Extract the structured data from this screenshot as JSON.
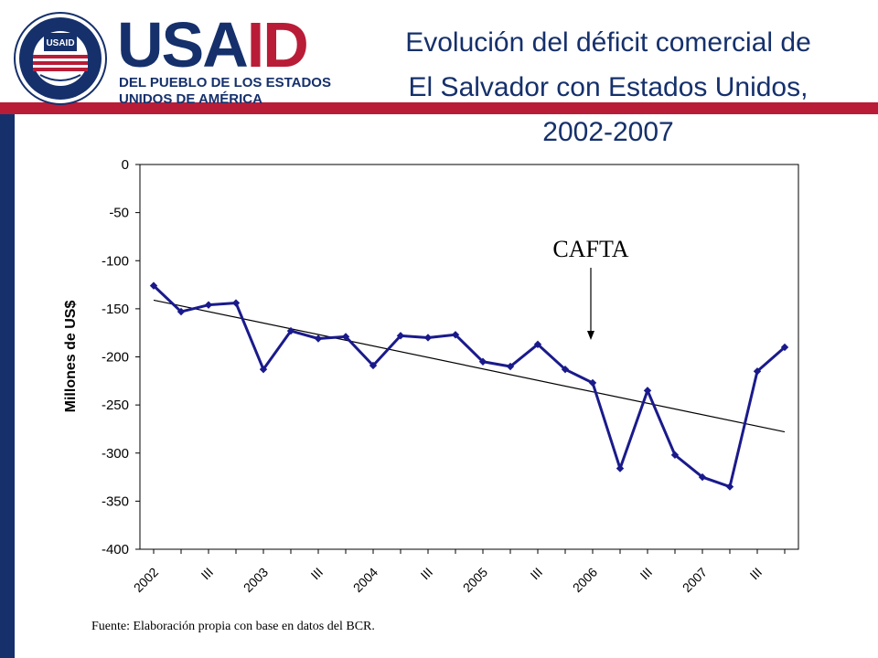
{
  "header": {
    "logo_word": "USAID",
    "logo_sub1": "DEL PUEBLO DE LOS ESTADOS",
    "logo_sub2": "UNIDOS DE AMÉRICA",
    "seal_text": "UNITED STATES AGENCY · INTERNATIONAL DEVELOPMENT",
    "seal_label": "USAID"
  },
  "title": {
    "line1": "Evolución del déficit comercial de",
    "line2": "El Salvador con Estados Unidos,",
    "line3": "2002-2007"
  },
  "colors": {
    "navy": "#15306b",
    "red": "#b91c37",
    "series": "#1a1a8c"
  },
  "chart_data": {
    "type": "line",
    "ylabel": "Millones de US$",
    "ylim": [
      -400,
      0
    ],
    "yticks": [
      "0",
      "-50",
      "-100",
      "-150",
      "-200",
      "-250",
      "-300",
      "-350",
      "-400"
    ],
    "x_tick_labels": [
      "2002",
      "III",
      "2003",
      "III",
      "2004",
      "III",
      "2005",
      "III",
      "2006",
      "III",
      "2007",
      "III"
    ],
    "series": [
      {
        "values": [
          -126,
          -153,
          -146,
          -144,
          -213,
          -173,
          -181,
          -179,
          -209,
          -178,
          -180,
          -177,
          -205,
          -210,
          -187,
          -213,
          -227,
          -316,
          -235,
          -302,
          -325,
          -335,
          -215,
          -190
        ]
      }
    ],
    "trendline": {
      "start": -141,
      "end": -278
    },
    "annotation": {
      "text": "CAFTA",
      "x_index": 16
    },
    "grid": false
  },
  "footer": {
    "source": "Fuente: Elaboración propia con base en datos del BCR."
  }
}
